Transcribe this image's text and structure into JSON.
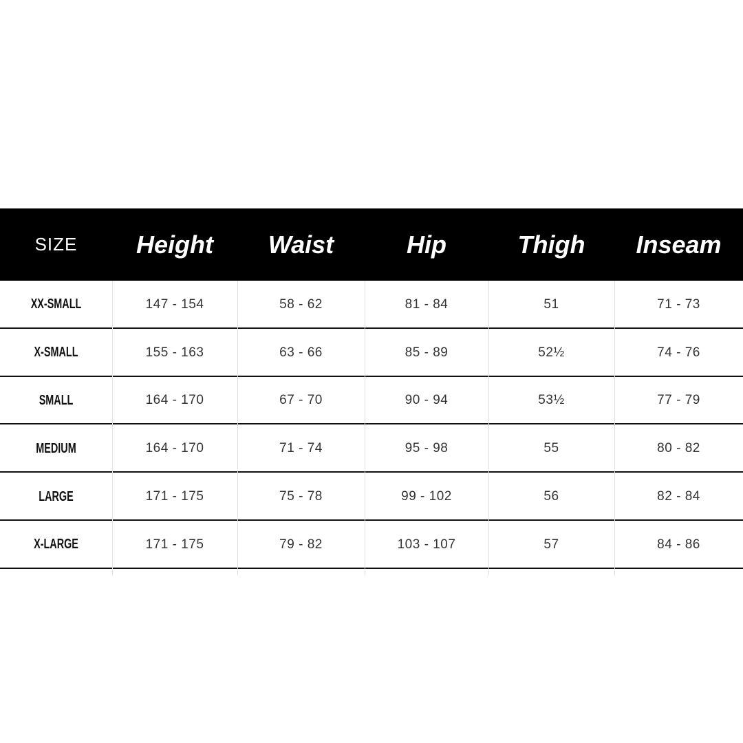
{
  "table": {
    "header": [
      "SIZE",
      "Height",
      "Waist",
      "Hip",
      "Thigh",
      "Inseam"
    ],
    "rows": [
      [
        "XX-SMALL",
        "147 - 154",
        "58 - 62",
        "81 - 84",
        "51",
        "71 - 73"
      ],
      [
        "X-SMALL",
        "155 - 163",
        "63 - 66",
        "85 - 89",
        "52½",
        "74 - 76"
      ],
      [
        "SMALL",
        "164 - 170",
        "67 - 70",
        "90 - 94",
        "53½",
        "77 - 79"
      ],
      [
        "MEDIUM",
        "164 - 170",
        "71 - 74",
        "95 - 98",
        "55",
        "80 - 82"
      ],
      [
        "LARGE",
        "171 - 175",
        "75 - 78",
        "99 - 102",
        "56",
        "82 - 84"
      ],
      [
        "X-LARGE",
        "171 - 175",
        "79 - 82",
        "103 - 107",
        "57",
        "84 - 86"
      ]
    ]
  }
}
